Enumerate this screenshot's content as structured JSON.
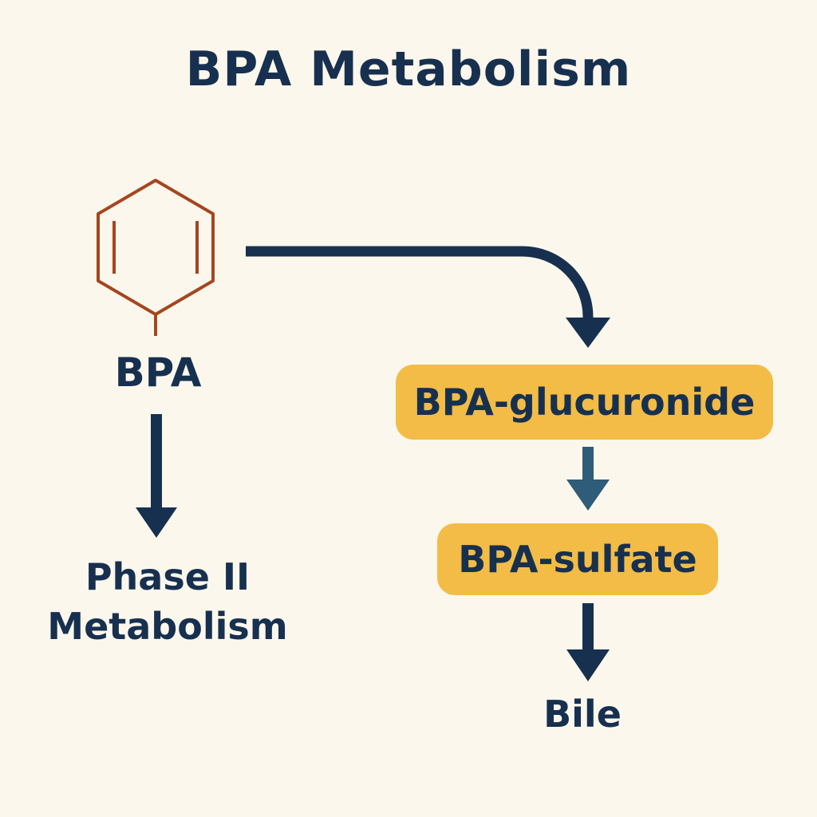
{
  "title": "BPA Metabolism",
  "nodes": {
    "bpa": {
      "label": "BPA",
      "icon": "benzene-ring-icon"
    },
    "phase_ii": {
      "line1": "Phase II",
      "line2": "Metabolism"
    },
    "glucuronide": {
      "label": "BPA-glucuronide"
    },
    "sulfate": {
      "label": "BPA-sulfate"
    },
    "bile": {
      "label": "Bile"
    }
  },
  "edges": [
    {
      "from": "bpa",
      "to": "phase_ii"
    },
    {
      "from": "bpa",
      "to": "glucuronide"
    },
    {
      "from": "glucuronide",
      "to": "sulfate"
    },
    {
      "from": "sulfate",
      "to": "bile"
    }
  ],
  "colors": {
    "background": "#fcf7ec",
    "text": "#17304f",
    "arrow": "#17304f",
    "arrow_light": "#2f5c78",
    "ring": "#a4461f",
    "box": "#f2bc46"
  }
}
